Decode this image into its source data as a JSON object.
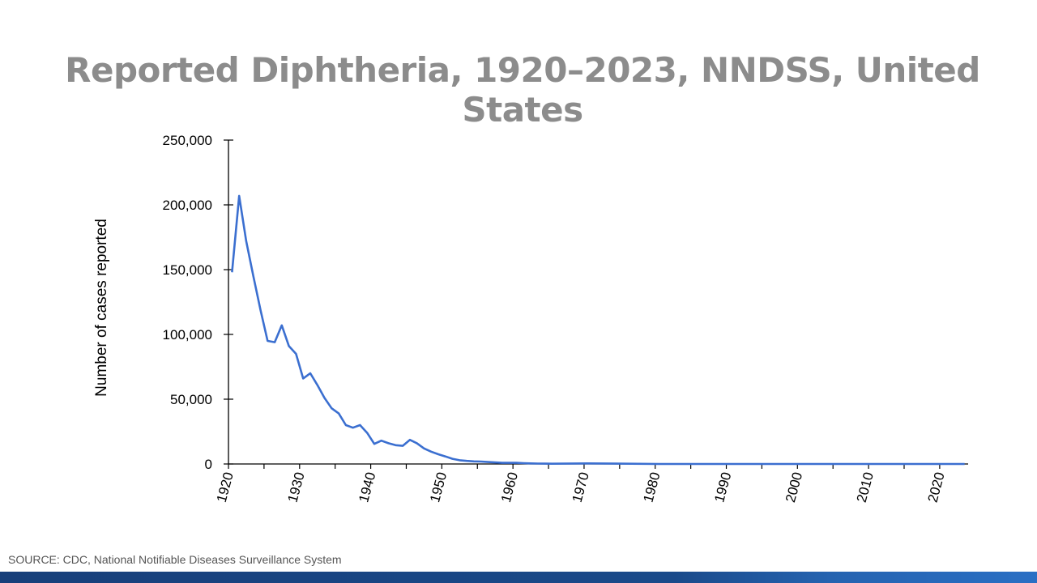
{
  "title": "Reported Diphtheria, 1920–2023, NNDSS, United States",
  "source": "SOURCE: CDC, National Notifiable Diseases Surveillance System",
  "chart_data": {
    "type": "line",
    "title": "Reported Diphtheria, 1920–2023, NNDSS, United States",
    "xlabel": "",
    "ylabel": "Number of cases reported",
    "ylim": [
      0,
      250000
    ],
    "xlim": [
      1920,
      2023
    ],
    "yticks": [
      "0",
      "50,000",
      "100,000",
      "150,000",
      "200,000",
      "250,000"
    ],
    "xticks": [
      "1920",
      "1930",
      "1940",
      "1950",
      "1960",
      "1970",
      "1980",
      "1990",
      "2000",
      "2010",
      "2020"
    ],
    "grid": false,
    "color": "#3b6fd0",
    "x": [
      1920,
      1921,
      1922,
      1923,
      1924,
      1925,
      1926,
      1927,
      1928,
      1929,
      1930,
      1931,
      1932,
      1933,
      1934,
      1935,
      1936,
      1937,
      1938,
      1939,
      1940,
      1941,
      1942,
      1943,
      1944,
      1945,
      1946,
      1947,
      1948,
      1949,
      1950,
      1951,
      1952,
      1953,
      1954,
      1955,
      1956,
      1957,
      1958,
      1959,
      1960,
      1961,
      1962,
      1963,
      1964,
      1965,
      1970,
      1980,
      1990,
      2000,
      2010,
      2020,
      2023
    ],
    "values": [
      147991,
      206939,
      172000,
      145000,
      119000,
      95000,
      94000,
      107000,
      91000,
      85000,
      66000,
      70000,
      61000,
      51000,
      43000,
      39000,
      30000,
      28000,
      30000,
      24000,
      15500,
      18000,
      16000,
      14500,
      14000,
      18600,
      16000,
      12000,
      9500,
      7500,
      5800,
      4000,
      2900,
      2400,
      2000,
      1900,
      1500,
      1200,
      900,
      900,
      900,
      600,
      440,
      300,
      250,
      160,
      435,
      3,
      4,
      1,
      0,
      0,
      2
    ]
  }
}
